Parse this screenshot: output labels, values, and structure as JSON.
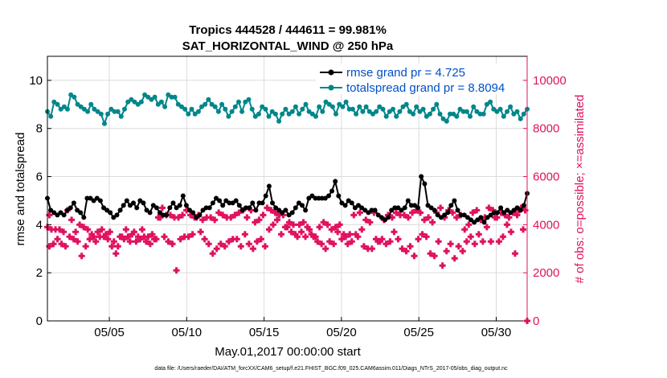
{
  "chart_data": {
    "type": "line",
    "title_line1": "Tropics 444528 / 444611 = 99.981%",
    "title_line2": "SAT_HORIZONTAL_WIND @ 250 hPa",
    "xlabel": "May.01,2017 00:00:00 start",
    "ylabel_left": "rmse and totalspread",
    "ylabel_right": "# of obs: o=possible; ×=assimilated",
    "footer": "data file: /Users/raeder/DAI/ATM_forcXX/CAM6_setup/f.e21.FHIST_BGC.f09_025.CAM6assim.011/Diags_NTrS_2017-05/obs_diag_output.nc",
    "xlim": [
      1,
      32
    ],
    "ylim_left": [
      0,
      11
    ],
    "ylim_right": [
      0,
      11000
    ],
    "x_tick_labels": [
      "05/05",
      "05/10",
      "05/15",
      "05/20",
      "05/25",
      "05/30"
    ],
    "x_tick_values": [
      5,
      10,
      15,
      20,
      25,
      30
    ],
    "y_left_tick_labels": [
      "0",
      "2",
      "4",
      "6",
      "8",
      "10"
    ],
    "y_left_tick_values": [
      0,
      2,
      4,
      6,
      8,
      10
    ],
    "y_right_tick_labels": [
      "0",
      "2000",
      "4000",
      "6000",
      "8000",
      "10000"
    ],
    "y_right_tick_values": [
      0,
      2000,
      4000,
      6000,
      8000,
      10000
    ],
    "grid": true,
    "legend_position": "top-right",
    "series": [
      {
        "name": "rmse grand pr = 4.725",
        "axis": "left",
        "color": "#000000",
        "values": [
          5.1,
          4.6,
          4.5,
          4.4,
          4.5,
          4.4,
          4.6,
          4.7,
          4.9,
          4.6,
          4.5,
          4.3,
          5.1,
          5.1,
          5.0,
          5.1,
          5.0,
          4.7,
          4.6,
          4.5,
          4.3,
          4.4,
          4.6,
          4.8,
          5.0,
          4.8,
          4.9,
          4.7,
          5.0,
          4.9,
          4.6,
          4.5,
          4.8,
          4.7,
          4.5,
          4.4,
          4.4,
          4.7,
          4.9,
          4.7,
          4.8,
          5.2,
          4.8,
          4.6,
          4.5,
          4.3,
          4.4,
          4.6,
          4.7,
          4.7,
          4.9,
          5.1,
          5.0,
          4.8,
          5.0,
          4.9,
          4.9,
          5.0,
          4.8,
          4.6,
          4.7,
          4.7,
          4.9,
          4.6,
          4.9,
          4.9,
          5.2,
          5.6,
          4.9,
          4.7,
          4.6,
          4.5,
          4.6,
          4.4,
          4.5,
          4.7,
          4.9,
          4.8,
          4.6,
          5.1,
          5.2,
          5.1,
          5.1,
          5.1,
          5.1,
          5.2,
          5.4,
          5.8,
          5.2,
          4.9,
          4.8,
          5.0,
          4.9,
          4.7,
          4.8,
          4.7,
          4.6,
          4.5,
          4.6,
          4.6,
          4.4,
          4.3,
          4.2,
          4.3,
          4.6,
          4.7,
          4.7,
          4.6,
          4.7,
          5.0,
          4.8,
          4.8,
          4.7,
          6.0,
          5.7,
          4.8,
          4.7,
          4.6,
          4.4,
          4.3,
          4.4,
          4.5,
          4.8,
          5.0,
          4.6,
          4.4,
          4.4,
          4.3,
          4.2,
          4.1,
          4.2,
          4.3,
          4.1,
          4.3,
          4.4,
          4.5,
          4.5,
          4.7,
          4.5,
          4.6,
          4.5,
          4.6,
          4.7,
          4.6,
          4.8,
          5.3
        ]
      },
      {
        "name": "totalspread grand pr = 8.8094",
        "axis": "left",
        "color": "#00868b",
        "values": [
          8.7,
          8.5,
          9.1,
          9.0,
          8.8,
          8.9,
          8.8,
          9.4,
          9.3,
          9.0,
          8.9,
          8.8,
          8.7,
          9.0,
          8.8,
          8.7,
          8.6,
          8.2,
          8.6,
          8.8,
          8.7,
          8.7,
          8.5,
          8.8,
          9.1,
          9.2,
          9.1,
          9.0,
          9.1,
          9.4,
          9.3,
          9.2,
          9.3,
          9.0,
          9.1,
          8.9,
          9.4,
          9.3,
          9.3,
          9.0,
          8.9,
          8.8,
          8.6,
          8.8,
          8.6,
          8.7,
          8.9,
          9.0,
          9.2,
          9.0,
          8.9,
          8.7,
          9.0,
          8.8,
          8.5,
          8.7,
          8.9,
          9.1,
          8.7,
          9.1,
          9.2,
          8.8,
          8.5,
          8.6,
          8.9,
          8.8,
          8.5,
          8.7,
          8.6,
          8.3,
          8.6,
          8.8,
          8.6,
          8.7,
          8.9,
          8.6,
          8.8,
          9.0,
          8.7,
          8.6,
          8.5,
          8.9,
          8.7,
          9.1,
          9.0,
          8.9,
          8.6,
          9.0,
          8.9,
          9.1,
          8.8,
          8.8,
          8.6,
          8.9,
          8.7,
          8.9,
          8.7,
          8.6,
          8.7,
          8.9,
          8.8,
          8.5,
          8.7,
          8.8,
          8.5,
          8.7,
          8.9,
          9.0,
          8.7,
          8.6,
          8.9,
          8.7,
          8.8,
          8.5,
          8.6,
          8.8,
          9.0,
          8.6,
          8.4,
          8.3,
          8.6,
          8.6,
          8.5,
          8.8,
          8.7,
          8.7,
          8.5,
          8.9,
          8.7,
          8.6,
          8.6,
          9.0,
          9.1,
          8.8,
          8.7,
          8.8,
          8.5,
          8.7,
          8.9,
          8.6,
          8.7,
          8.4,
          8.6,
          8.8
        ]
      },
      {
        "name": "",
        "axis": "right",
        "color": "#e0115f",
        "marker": "plus",
        "values": [
          3900,
          3800,
          3800,
          3800,
          3700,
          4600,
          4200,
          3700,
          4000,
          3900,
          3800,
          3600,
          3300,
          3500,
          3500,
          3400,
          3100,
          2800,
          3500,
          3400,
          3500,
          3600,
          3300,
          3400,
          3500,
          3500,
          3600,
          3400,
          4300,
          3500,
          3300,
          3200,
          2100,
          3400,
          3500,
          3500,
          3600,
          4300,
          3700,
          3400,
          3200,
          2800,
          3000,
          3200,
          3100,
          3300,
          3400,
          3400,
          3100,
          3600,
          3200,
          3000,
          3300,
          3400,
          3100,
          3800,
          4000,
          4200,
          3600,
          3900,
          4100,
          4000,
          3500,
          3700,
          3500,
          3800,
          3500,
          3300,
          3200,
          3000,
          3300,
          3200,
          3700,
          3400,
          3500,
          3600,
          4400,
          3500,
          3800,
          4200,
          4100,
          4500,
          3300,
          3400,
          3200,
          3300,
          3700,
          3400,
          3000,
          2900,
          3100,
          2700,
          3400,
          3600,
          3500,
          2800,
          2700,
          3300,
          2300,
          2900,
          3200,
          2600,
          3100,
          2900,
          3300,
          3500,
          3200,
          3600,
          3300,
          3900,
          3300,
          4300,
          3300,
          3500,
          4000,
          3700,
          2800,
          4600,
          3800,
          3100,
          3200,
          3400,
          3200,
          3100,
          3500,
          3400,
          3300,
          2700,
          3100,
          3400,
          3500,
          3700,
          3800,
          3600,
          3700,
          3300,
          3100,
          3500,
          3800,
          3300,
          3700,
          3500,
          3800,
          3300,
          3200,
          3400,
          4300,
          4700,
          4400,
          4400,
          4300,
          4300,
          4400,
          4600,
          4400,
          4300,
          4400,
          4200,
          4300,
          4300,
          4200,
          4500,
          4400,
          4300,
          4300,
          4400,
          4500,
          4600,
          4300,
          4600,
          4100,
          4200,
          4400,
          4700,
          4600,
          4500,
          4400,
          4400,
          3900,
          3700,
          3600,
          4000,
          4100,
          3900,
          3600,
          3500,
          3900,
          4100,
          4000,
          3800,
          3900,
          4000,
          3600,
          3200,
          3300,
          3600,
          4500,
          3100,
          3000,
          3000,
          3400,
          3300,
          4200,
          4400,
          4300,
          4500,
          4400,
          4400,
          4300,
          4500,
          4600,
          4500,
          4200,
          4300,
          4100,
          4500,
          4700,
          4300,
          4600,
          4500,
          4300,
          4400,
          3800,
          4000,
          4500,
          4600,
          4200,
          4300,
          4700,
          4600,
          4300,
          4500,
          4400,
          4300,
          4500,
          4400,
          4700,
          4600,
          4400
        ]
      }
    ],
    "assimilated_count_samples": [
      3900,
      4600,
      2100,
      4700,
      2300,
      2200,
      4800,
      4600,
      0
    ],
    "possible_count_note": ""
  }
}
